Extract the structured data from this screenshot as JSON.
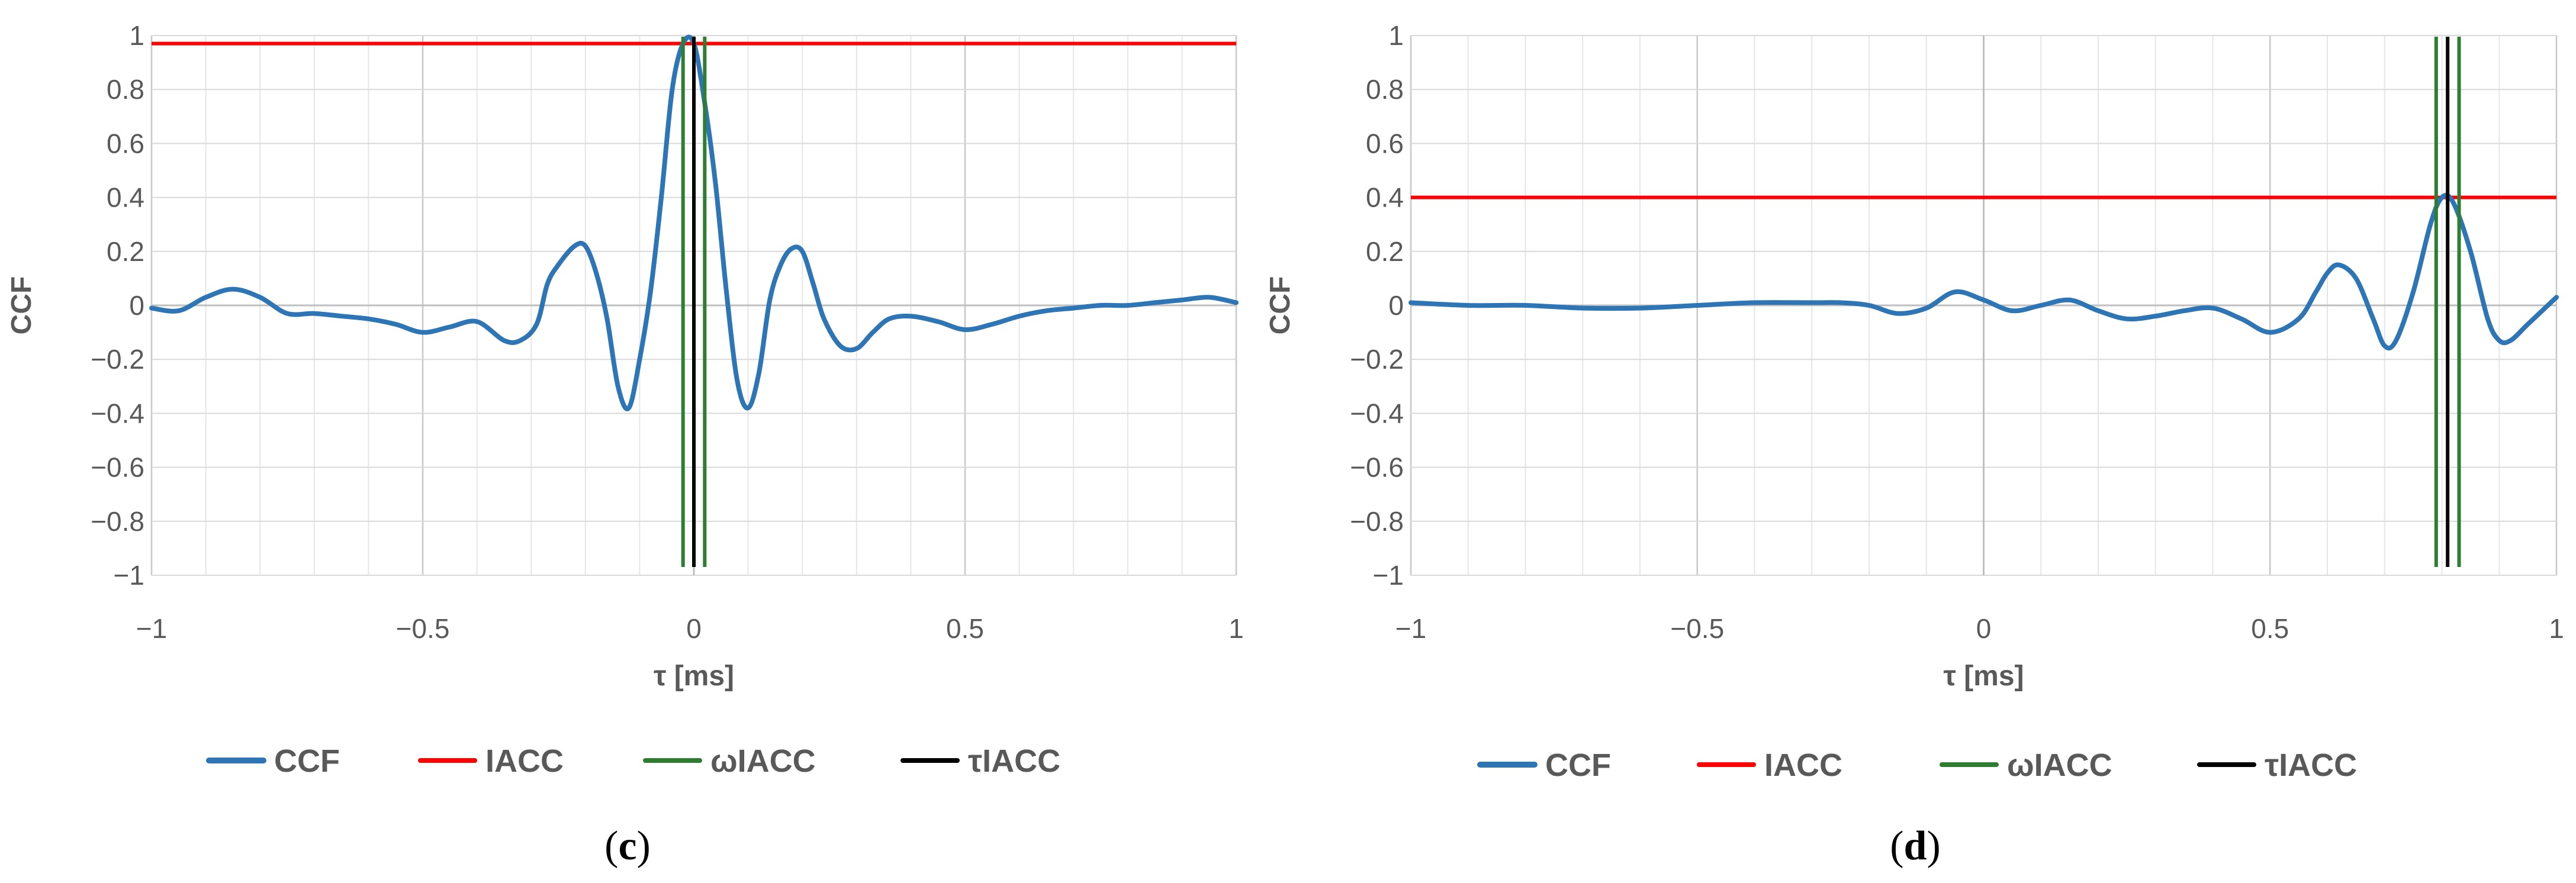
{
  "chart_data": [
    {
      "type": "line",
      "panel_label_prefix": "(",
      "panel_label": "c",
      "panel_label_suffix": ")",
      "xlabel": "τ [ms]",
      "ylabel": "CCF",
      "xlim": [
        -1,
        1
      ],
      "ylim": [
        -1,
        1
      ],
      "x_ticks": [
        "−1",
        "−0.5",
        "0",
        "0.5",
        "1"
      ],
      "y_ticks": [
        "1",
        "0.8",
        "0.6",
        "0.4",
        "0.2",
        "0",
        "−0.2",
        "−0.4",
        "−0.6",
        "−0.8",
        "−1"
      ],
      "grid": true,
      "legend_position": "bottom",
      "series": [
        {
          "name": "CCF",
          "color": "#2e75b6",
          "x": [
            -1.0,
            -0.95,
            -0.9,
            -0.85,
            -0.8,
            -0.75,
            -0.7,
            -0.65,
            -0.6,
            -0.55,
            -0.5,
            -0.45,
            -0.4,
            -0.35,
            -0.32,
            -0.29,
            -0.27,
            -0.25,
            -0.22,
            -0.2,
            -0.18,
            -0.16,
            -0.14,
            -0.12,
            -0.1,
            -0.08,
            -0.06,
            -0.04,
            -0.02,
            0.0,
            0.02,
            0.04,
            0.06,
            0.08,
            0.1,
            0.12,
            0.14,
            0.16,
            0.18,
            0.2,
            0.22,
            0.24,
            0.27,
            0.3,
            0.33,
            0.36,
            0.4,
            0.45,
            0.5,
            0.55,
            0.6,
            0.65,
            0.7,
            0.75,
            0.8,
            0.85,
            0.9,
            0.95,
            1.0
          ],
          "y": [
            -0.01,
            -0.02,
            0.03,
            0.06,
            0.03,
            -0.03,
            -0.03,
            -0.04,
            -0.05,
            -0.07,
            -0.1,
            -0.08,
            -0.06,
            -0.13,
            -0.13,
            -0.07,
            0.08,
            0.15,
            0.22,
            0.22,
            0.12,
            -0.05,
            -0.3,
            -0.38,
            -0.2,
            0.05,
            0.4,
            0.8,
            0.97,
            0.97,
            0.75,
            0.45,
            0.05,
            -0.28,
            -0.38,
            -0.25,
            0.02,
            0.15,
            0.21,
            0.2,
            0.08,
            -0.05,
            -0.15,
            -0.16,
            -0.1,
            -0.05,
            -0.04,
            -0.06,
            -0.09,
            -0.07,
            -0.04,
            -0.02,
            -0.01,
            0.0,
            0.0,
            0.01,
            0.02,
            0.03,
            0.01
          ]
        },
        {
          "name": "IACC",
          "color": "#ff0000",
          "value": 0.97
        },
        {
          "name": "ωIACC",
          "color": "#2e7d32",
          "x_lines": [
            -0.02,
            0.02
          ]
        },
        {
          "name": "τIACC",
          "color": "#000000",
          "x_lines": [
            0.0
          ]
        }
      ]
    },
    {
      "type": "line",
      "panel_label_prefix": "(",
      "panel_label": "d",
      "panel_label_suffix": ")",
      "xlabel": "τ [ms]",
      "ylabel": "CCF",
      "xlim": [
        -1,
        1
      ],
      "ylim": [
        -1,
        1
      ],
      "x_ticks": [
        "−1",
        "−0.5",
        "0",
        "0.5",
        "1"
      ],
      "y_ticks": [
        "1",
        "0.8",
        "0.6",
        "0.4",
        "0.2",
        "0",
        "−0.2",
        "−0.4",
        "−0.6",
        "−0.8",
        "−1"
      ],
      "grid": true,
      "legend_position": "bottom",
      "series": [
        {
          "name": "CCF",
          "color": "#2e75b6",
          "x": [
            -1.0,
            -0.9,
            -0.8,
            -0.7,
            -0.6,
            -0.5,
            -0.4,
            -0.3,
            -0.25,
            -0.2,
            -0.15,
            -0.1,
            -0.05,
            0.0,
            0.05,
            0.1,
            0.15,
            0.2,
            0.25,
            0.3,
            0.35,
            0.4,
            0.45,
            0.5,
            0.55,
            0.58,
            0.6,
            0.62,
            0.65,
            0.68,
            0.7,
            0.72,
            0.75,
            0.78,
            0.8,
            0.82,
            0.85,
            0.88,
            0.9,
            0.92,
            0.95,
            1.0
          ],
          "y": [
            0.01,
            0.0,
            0.0,
            -0.01,
            -0.01,
            0.0,
            0.01,
            0.01,
            0.01,
            0.0,
            -0.03,
            -0.01,
            0.05,
            0.02,
            -0.02,
            0.0,
            0.02,
            -0.02,
            -0.05,
            -0.04,
            -0.02,
            -0.01,
            -0.05,
            -0.1,
            -0.05,
            0.05,
            0.12,
            0.15,
            0.1,
            -0.05,
            -0.15,
            -0.13,
            0.05,
            0.3,
            0.4,
            0.38,
            0.2,
            -0.05,
            -0.13,
            -0.13,
            -0.07,
            0.03
          ]
        },
        {
          "name": "IACC",
          "color": "#ff0000",
          "value": 0.4
        },
        {
          "name": "ωIACC",
          "color": "#2e7d32",
          "x_lines": [
            0.79,
            0.83
          ]
        },
        {
          "name": "τIACC",
          "color": "#000000",
          "x_lines": [
            0.81
          ]
        }
      ]
    }
  ]
}
